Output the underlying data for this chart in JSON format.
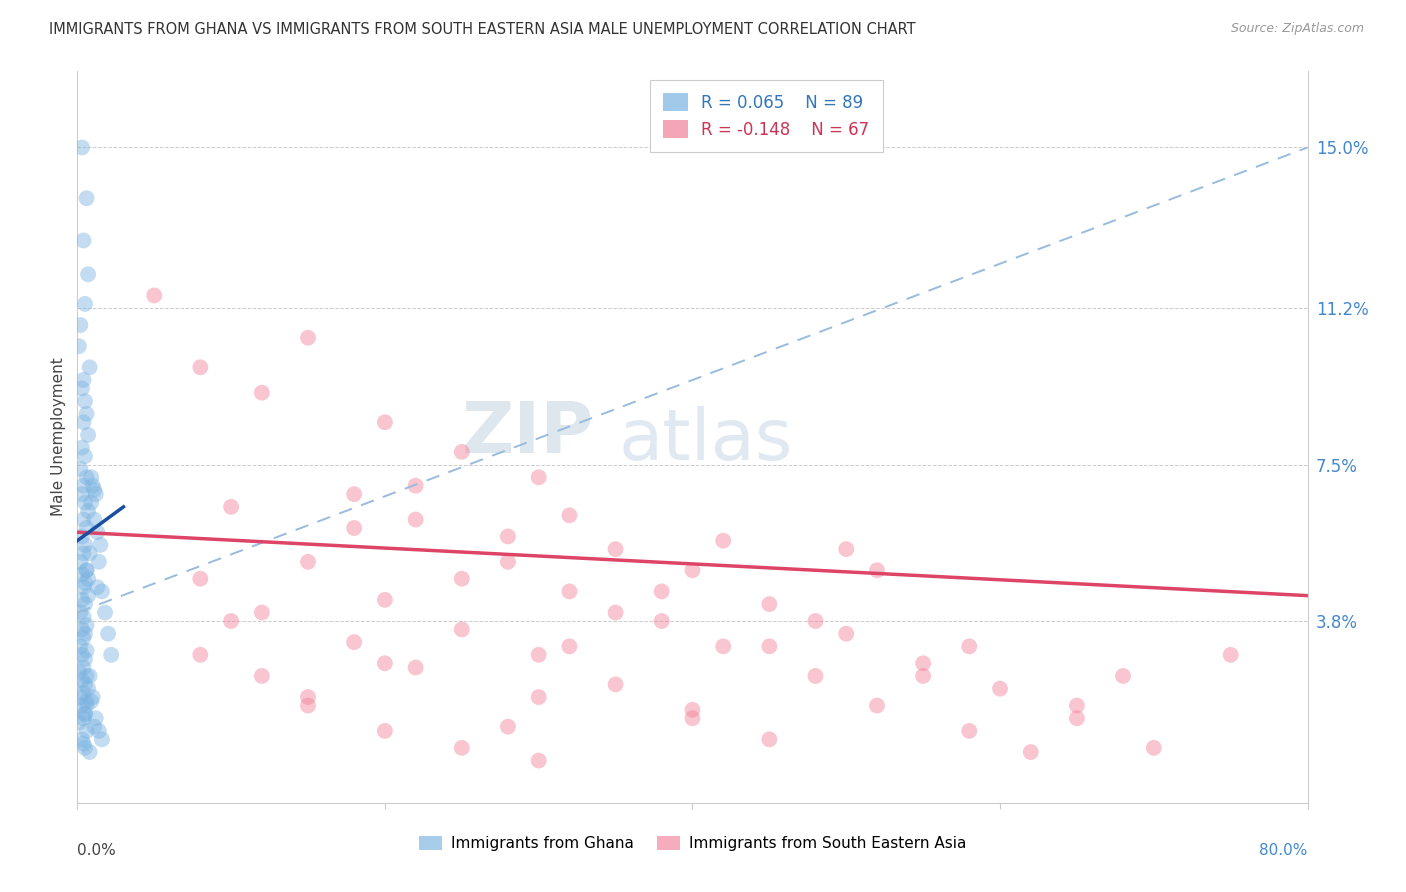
{
  "title": "IMMIGRANTS FROM GHANA VS IMMIGRANTS FROM SOUTH EASTERN ASIA MALE UNEMPLOYMENT CORRELATION CHART",
  "source": "Source: ZipAtlas.com",
  "ylabel": "Male Unemployment",
  "ytick_values": [
    0.038,
    0.075,
    0.112,
    0.15
  ],
  "ytick_labels": [
    "3.8%",
    "7.5%",
    "11.2%",
    "15.0%"
  ],
  "xlim": [
    0.0,
    0.8
  ],
  "ylim": [
    -0.005,
    0.168
  ],
  "legend_label1": "Immigrants from Ghana",
  "legend_label2": "Immigrants from South Eastern Asia",
  "watermark_zip": "ZIP",
  "watermark_atlas": "atlas",
  "blue_R": 0.065,
  "blue_N": 89,
  "pink_R": -0.148,
  "pink_N": 67,
  "blue_color": "#7ab3e0",
  "pink_color": "#f08098",
  "blue_trend_color": "#1a4e9e",
  "pink_trend_color": "#dd4466",
  "dash_trend_color": "#99bbdd",
  "blue_scatter_x": [
    0.003,
    0.006,
    0.004,
    0.007,
    0.005,
    0.002,
    0.001,
    0.008,
    0.004,
    0.003,
    0.005,
    0.006,
    0.004,
    0.007,
    0.003,
    0.005,
    0.002,
    0.006,
    0.004,
    0.003,
    0.005,
    0.007,
    0.004,
    0.006,
    0.003,
    0.005,
    0.004,
    0.002,
    0.006,
    0.003,
    0.005,
    0.004,
    0.007,
    0.003,
    0.005,
    0.002,
    0.004,
    0.006,
    0.003,
    0.005,
    0.004,
    0.002,
    0.006,
    0.003,
    0.005,
    0.004,
    0.001,
    0.006,
    0.003,
    0.005,
    0.004,
    0.002,
    0.006,
    0.003,
    0.005,
    0.004,
    0.001,
    0.006,
    0.003,
    0.005,
    0.009,
    0.011,
    0.013,
    0.015,
    0.01,
    0.012,
    0.008,
    0.014,
    0.007,
    0.016,
    0.009,
    0.011,
    0.006,
    0.013,
    0.018,
    0.02,
    0.022,
    0.008,
    0.01,
    0.006,
    0.012,
    0.014,
    0.016,
    0.007,
    0.009,
    0.005,
    0.011,
    0.004,
    0.008
  ],
  "blue_scatter_y": [
    0.15,
    0.138,
    0.128,
    0.12,
    0.113,
    0.108,
    0.103,
    0.098,
    0.095,
    0.093,
    0.09,
    0.087,
    0.085,
    0.082,
    0.079,
    0.077,
    0.074,
    0.072,
    0.07,
    0.068,
    0.066,
    0.064,
    0.062,
    0.06,
    0.058,
    0.056,
    0.054,
    0.052,
    0.05,
    0.049,
    0.047,
    0.046,
    0.044,
    0.043,
    0.042,
    0.04,
    0.039,
    0.037,
    0.036,
    0.035,
    0.034,
    0.032,
    0.031,
    0.03,
    0.029,
    0.027,
    0.026,
    0.025,
    0.024,
    0.023,
    0.021,
    0.02,
    0.019,
    0.018,
    0.016,
    0.015,
    0.014,
    0.012,
    0.01,
    0.008,
    0.066,
    0.062,
    0.059,
    0.056,
    0.07,
    0.068,
    0.054,
    0.052,
    0.048,
    0.045,
    0.072,
    0.069,
    0.05,
    0.046,
    0.04,
    0.035,
    0.03,
    0.025,
    0.02,
    0.018,
    0.015,
    0.012,
    0.01,
    0.022,
    0.019,
    0.016,
    0.013,
    0.009,
    0.007
  ],
  "pink_scatter_x": [
    0.05,
    0.15,
    0.08,
    0.12,
    0.2,
    0.25,
    0.3,
    0.18,
    0.1,
    0.22,
    0.28,
    0.35,
    0.15,
    0.4,
    0.08,
    0.32,
    0.2,
    0.45,
    0.12,
    0.38,
    0.25,
    0.5,
    0.18,
    0.42,
    0.3,
    0.55,
    0.22,
    0.48,
    0.35,
    0.6,
    0.15,
    0.52,
    0.4,
    0.65,
    0.28,
    0.58,
    0.45,
    0.7,
    0.32,
    0.62,
    0.1,
    0.2,
    0.3,
    0.4,
    0.5,
    0.25,
    0.35,
    0.45,
    0.55,
    0.65,
    0.18,
    0.28,
    0.38,
    0.48,
    0.58,
    0.68,
    0.22,
    0.32,
    0.42,
    0.52,
    0.75,
    0.08,
    0.12,
    0.15,
    0.2,
    0.25,
    0.3
  ],
  "pink_scatter_y": [
    0.115,
    0.105,
    0.098,
    0.092,
    0.085,
    0.078,
    0.072,
    0.068,
    0.065,
    0.062,
    0.058,
    0.055,
    0.052,
    0.05,
    0.048,
    0.045,
    0.043,
    0.042,
    0.04,
    0.038,
    0.036,
    0.035,
    0.033,
    0.032,
    0.03,
    0.028,
    0.027,
    0.025,
    0.023,
    0.022,
    0.02,
    0.018,
    0.017,
    0.015,
    0.013,
    0.012,
    0.01,
    0.008,
    0.032,
    0.007,
    0.038,
    0.028,
    0.02,
    0.015,
    0.055,
    0.048,
    0.04,
    0.032,
    0.025,
    0.018,
    0.06,
    0.052,
    0.045,
    0.038,
    0.032,
    0.025,
    0.07,
    0.063,
    0.057,
    0.05,
    0.03,
    0.03,
    0.025,
    0.018,
    0.012,
    0.008,
    0.005
  ],
  "blue_trend_x": [
    0.0,
    0.03
  ],
  "blue_trend_y": [
    0.057,
    0.065
  ],
  "pink_trend_x": [
    0.0,
    0.8
  ],
  "pink_trend_y": [
    0.059,
    0.044
  ],
  "dash_trend_x": [
    0.0,
    0.8
  ],
  "dash_trend_y": [
    0.04,
    0.15
  ]
}
